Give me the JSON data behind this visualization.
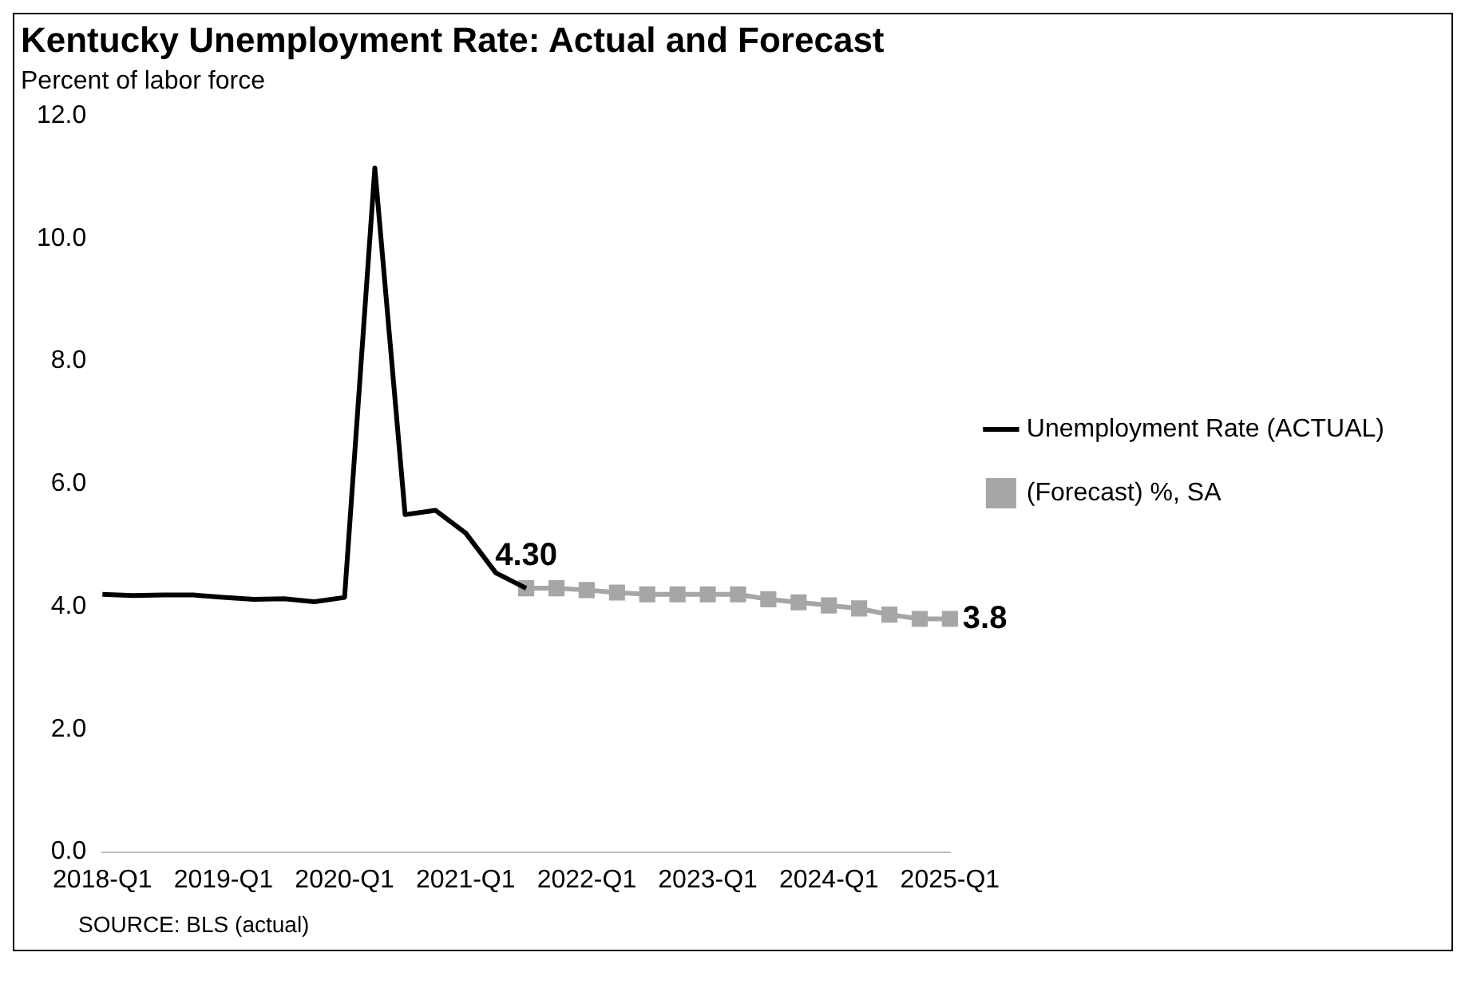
{
  "chart_data": {
    "type": "line",
    "title": "Kentucky Unemployment Rate: Actual and Forecast",
    "ylabel": "Percent of labor force",
    "categories": [
      "2018-Q1",
      null,
      null,
      null,
      "2019-Q1",
      null,
      null,
      null,
      "2020-Q1",
      null,
      null,
      null,
      "2021-Q1",
      null,
      null,
      null,
      "2022-Q1",
      null,
      null,
      null,
      "2023-Q1",
      null,
      null,
      null,
      "2024-Q1",
      null,
      null,
      null,
      "2025-Q1"
    ],
    "series": [
      {
        "name": "Unemployment Rate (ACTUAL)",
        "color": "#000000",
        "marker": "none",
        "values": [
          4.2,
          4.18,
          4.19,
          4.19,
          4.15,
          4.12,
          4.13,
          4.08,
          4.15,
          11.15,
          5.5,
          5.57,
          5.2,
          4.55,
          4.3,
          null,
          null,
          null,
          null,
          null,
          null,
          null,
          null,
          null,
          null,
          null,
          null,
          null,
          null
        ],
        "value_labels": [
          null,
          null,
          null,
          null,
          null,
          null,
          null,
          null,
          null,
          null,
          null,
          null,
          null,
          null,
          "4.30",
          null,
          null,
          null,
          null,
          null,
          null,
          null,
          null,
          null,
          null,
          null,
          null,
          null,
          null
        ]
      },
      {
        "name": "(Forecast) %, SA",
        "color": "#a6a6a6",
        "marker": "square",
        "values": [
          null,
          null,
          null,
          null,
          null,
          null,
          null,
          null,
          null,
          null,
          null,
          null,
          null,
          null,
          4.3,
          4.3,
          4.27,
          4.23,
          4.2,
          4.2,
          4.2,
          4.2,
          4.12,
          4.07,
          4.02,
          3.97,
          3.87,
          3.8,
          3.8
        ],
        "value_labels": [
          null,
          null,
          null,
          null,
          null,
          null,
          null,
          null,
          null,
          null,
          null,
          null,
          null,
          null,
          null,
          null,
          null,
          null,
          null,
          null,
          null,
          null,
          null,
          null,
          null,
          null,
          null,
          null,
          "3.8"
        ]
      }
    ],
    "ylim": [
      0,
      12
    ],
    "yticks": [
      {
        "value": 0,
        "label": "0.0"
      },
      {
        "value": 2,
        "label": "2.0"
      },
      {
        "value": 4,
        "label": "4.0"
      },
      {
        "value": 6,
        "label": "6.0"
      },
      {
        "value": 8,
        "label": "8.0"
      },
      {
        "value": 10,
        "label": "10.0"
      },
      {
        "value": 12,
        "label": "12.0"
      }
    ],
    "grid": false,
    "legend": "right",
    "annotations": [
      "SOURCE: BLS (actual)"
    ]
  }
}
